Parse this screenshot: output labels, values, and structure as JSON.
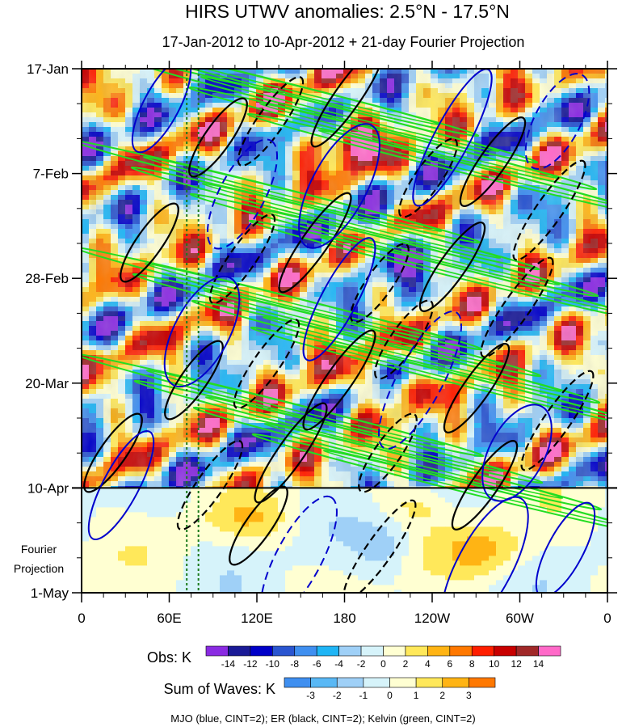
{
  "chart_data": {
    "type": "heatmap",
    "title": "HIRS UTWV anomalies: 2.5°N - 17.5°N",
    "subtitle": "17-Jan-2012 to 10-Apr-2012 + 21-day Fourier Projection",
    "x_ticks": [
      "0",
      "60E",
      "120E",
      "180",
      "120W",
      "60W",
      "0"
    ],
    "x_range": [
      0,
      360
    ],
    "y_ticks": [
      "17-Jan",
      "7-Feb",
      "28-Feb",
      "20-Mar",
      "10-Apr",
      "1-May"
    ],
    "y_range": [
      "17-Jan-2012",
      "1-May-2012"
    ],
    "observed_end": "10-Apr-2012",
    "projection_label_lines": [
      "Fourier",
      "Projection"
    ],
    "obs_colorbar": {
      "label": "Obs: K",
      "ticks": [
        "-14",
        "-12",
        "-10",
        "-8",
        "-6",
        "-4",
        "-2",
        "0",
        "2",
        "4",
        "6",
        "8",
        "10",
        "12",
        "14"
      ],
      "colors": [
        "#8a2be2",
        "#1a1a96",
        "#0000c8",
        "#2a55d0",
        "#3f8ff0",
        "#1fb5f5",
        "#9fd0f7",
        "#d6f3fa",
        "#ffffd2",
        "#ffe85a",
        "#ffb414",
        "#ff7800",
        "#ff1e00",
        "#c80000",
        "#a02828",
        "#ff69c8"
      ]
    },
    "waves_colorbar": {
      "label": "Sum of Waves: K",
      "ticks": [
        "-3",
        "-2",
        "-1",
        "0",
        "1",
        "2",
        "3"
      ],
      "colors": [
        "#3f8ff0",
        "#59b8f5",
        "#9fd0f7",
        "#d6f3fa",
        "#ffffd2",
        "#ffe85a",
        "#ffb414",
        "#ff7800"
      ]
    },
    "legend_note": "MJO (blue, CINT=2); ER (black, CINT=2); Kelvin (green, CINT=2)",
    "contour_colors": {
      "mjo": "#0000cc",
      "er": "#000000",
      "kelvin": "#22dd22"
    },
    "reference_line_lon": [
      72,
      80
    ]
  }
}
